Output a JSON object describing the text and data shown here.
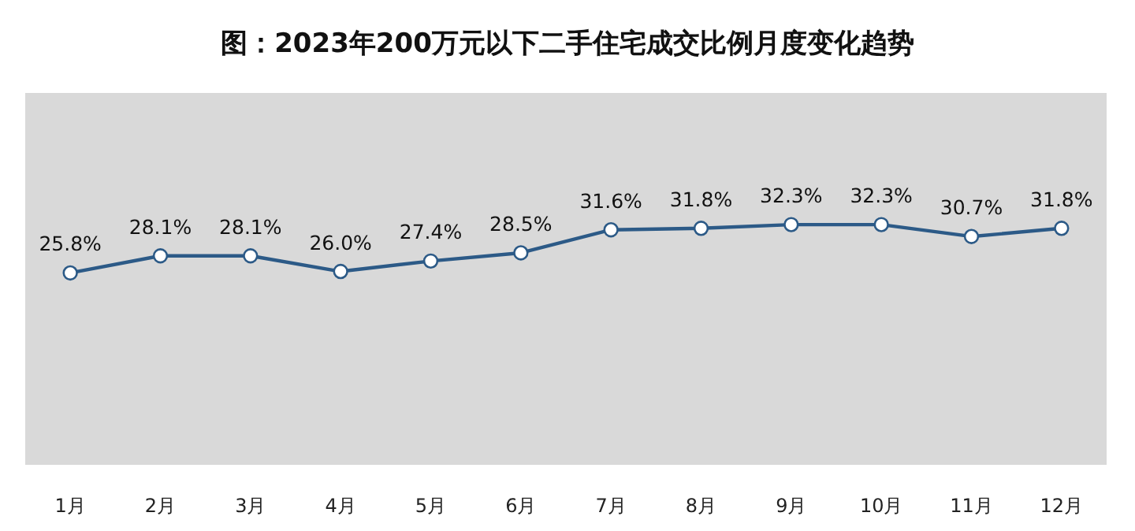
{
  "chart_data": {
    "type": "line",
    "title": "图：2023年200万元以下二手住宅成交比例月度变化趋势",
    "categories": [
      "1月",
      "2月",
      "3月",
      "4月",
      "5月",
      "6月",
      "7月",
      "8月",
      "9月",
      "10月",
      "11月",
      "12月"
    ],
    "values": [
      25.8,
      28.1,
      28.1,
      26.0,
      27.4,
      28.5,
      31.6,
      31.8,
      32.3,
      32.3,
      30.7,
      31.8
    ],
    "value_labels": [
      "25.8%",
      "28.1%",
      "28.1%",
      "26.0%",
      "27.4%",
      "28.5%",
      "31.6%",
      "31.8%",
      "32.3%",
      "32.3%",
      "30.7%",
      "31.8%"
    ],
    "color": "#2c5a87",
    "marker": "circle",
    "ylim": [
      0,
      50
    ],
    "tick_labels": "x"
  }
}
